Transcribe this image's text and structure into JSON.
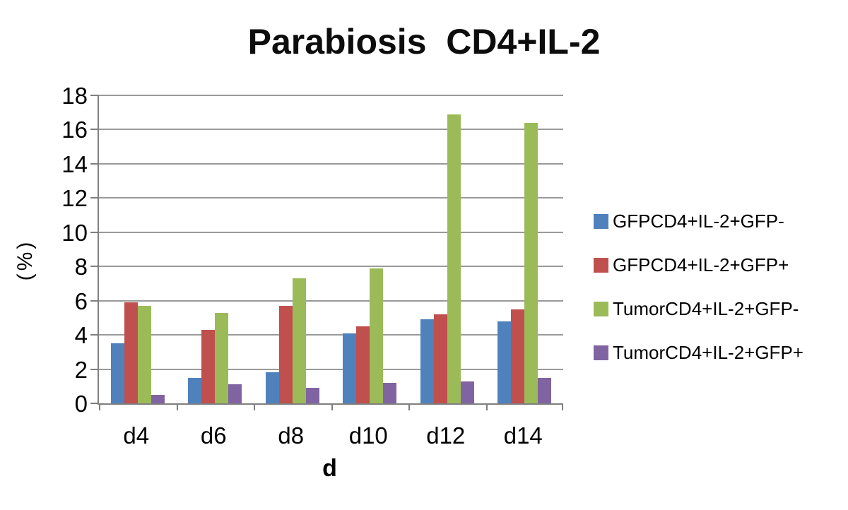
{
  "title": "Parabiosis  CD4+IL-2",
  "chart_data": {
    "type": "bar",
    "title": "Parabiosis  CD4+IL-2",
    "categories": [
      "d4",
      "d6",
      "d8",
      "d10",
      "d12",
      "d14"
    ],
    "series": [
      {
        "name": "GFPCD4+IL-2+GFP-",
        "color": "#4F81BD",
        "values": [
          3.5,
          1.5,
          1.8,
          4.1,
          4.9,
          4.8
        ]
      },
      {
        "name": "GFPCD4+IL-2+GFP+",
        "color": "#C0504D",
        "values": [
          5.9,
          4.3,
          5.7,
          4.5,
          5.2,
          5.5
        ]
      },
      {
        "name": "TumorCD4+IL-2+GFP-",
        "color": "#9BBB59",
        "values": [
          5.7,
          5.3,
          7.3,
          7.9,
          16.9,
          16.4
        ]
      },
      {
        "name": "TumorCD4+IL-2+GFP+",
        "color": "#8064A2",
        "values": [
          0.5,
          1.1,
          0.9,
          1.2,
          1.3,
          1.5
        ]
      }
    ],
    "xlabel": "d",
    "ylabel": "(%)",
    "ylim": [
      0,
      18
    ],
    "ytick_step": 2,
    "grid": true,
    "legend_position": "right"
  },
  "colors": {
    "gridline": "#9a9a9a",
    "axis": "#7f7f7f",
    "text": "#000000"
  }
}
